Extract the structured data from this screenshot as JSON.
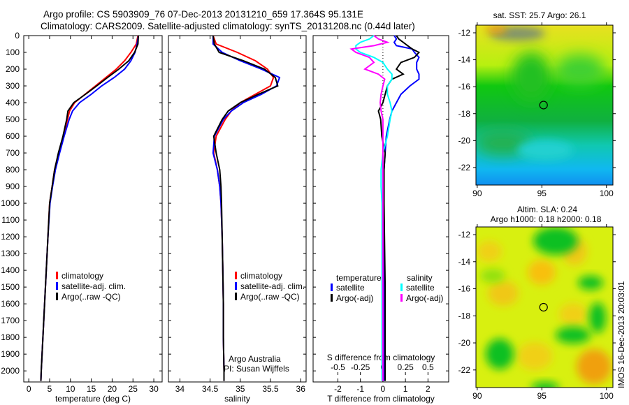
{
  "title_line1": "Argo profile: CS 5903909_76 07-Dec-2013 20131210_659 17.364S 95.131E",
  "title_line2": "Climatology: CARS2009. Satellite-adjusted climatology: synTS_20131208.nc (0.44d later)",
  "depth_ticks": [
    "0",
    "100",
    "200",
    "300",
    "400",
    "500",
    "600",
    "700",
    "800",
    "900",
    "1000",
    "1100",
    "1200",
    "1300",
    "1400",
    "1500",
    "1600",
    "1700",
    "1800",
    "1900",
    "2000"
  ],
  "credit": {
    "line1": "Argo Australia",
    "line2": "PI: Susan Wijffels"
  },
  "imos_stamp": "IMOS 16-Dec-2013 20:03:01",
  "colors": {
    "clim": "#ff0000",
    "sat": "#0000ff",
    "argo": "#000000",
    "s_sat": "#00ffff",
    "s_argo": "#ff00ff"
  },
  "chart_data": [
    {
      "type": "line",
      "name": "temperature",
      "xlabel": "temperature (deg C)",
      "ylabel": "depth",
      "xlim": [
        -1.2,
        32
      ],
      "ylim": [
        0,
        2066
      ],
      "xticks": [
        0,
        5,
        10,
        15,
        20,
        25,
        30
      ],
      "xtick_labels": [
        "0",
        "5",
        "10",
        "15",
        "20",
        "25",
        "30"
      ],
      "legend": [
        "climatology",
        "satellite-adj. clim.",
        "Argo(..raw -QC)"
      ],
      "legend_placement": "lower-middle",
      "depth": [
        0,
        50,
        100,
        150,
        200,
        250,
        300,
        350,
        400,
        450,
        500,
        600,
        700,
        800,
        900,
        1000,
        1200,
        1400,
        1600,
        1800,
        2000,
        2060
      ],
      "series": [
        {
          "name": "climatology",
          "color": "#ff0000",
          "values": [
            26.2,
            25.8,
            24.5,
            23,
            21,
            18.5,
            16,
            13.5,
            11,
            9.8,
            9.3,
            8.3,
            7.2,
            6.2,
            5.6,
            5.0,
            4.6,
            4.2,
            3.8,
            3.4,
            3.0,
            2.9
          ]
        },
        {
          "name": "satellite-adj. clim.",
          "color": "#0000ff",
          "values": [
            26.3,
            26,
            25.5,
            24.5,
            23,
            20.5,
            17.5,
            15,
            12.2,
            10.5,
            9.7,
            8.5,
            7.4,
            6.4,
            5.7,
            5.1,
            4.6,
            4.2,
            3.8,
            3.4,
            3.0,
            2.9
          ]
        },
        {
          "name": "Argo(..raw -QC)",
          "color": "#000000",
          "values": [
            26.3,
            26.2,
            25.4,
            24,
            21.6,
            18.9,
            16.3,
            13.6,
            10.8,
            9.4,
            9.1,
            8.2,
            7.1,
            6.2,
            5.6,
            5.0,
            4.6,
            4.2,
            3.8,
            3.4,
            3.0,
            2.9
          ]
        }
      ]
    },
    {
      "type": "line",
      "name": "salinity",
      "xlabel": "salinity",
      "xlim": [
        33.81,
        36.09
      ],
      "ylim": [
        0,
        2066
      ],
      "xticks": [
        34,
        34.5,
        35,
        35.5,
        36
      ],
      "xtick_labels": [
        "34",
        "34.5",
        "35",
        "35.5",
        "36"
      ],
      "legend": [
        "climatology",
        "satellite-adj. clim.",
        "Argo(..raw -QC)"
      ],
      "legend_placement": "lower-right",
      "depth": [
        0,
        50,
        100,
        150,
        200,
        250,
        300,
        350,
        400,
        450,
        500,
        600,
        700,
        800,
        900,
        1000,
        1200,
        1400,
        1600,
        1800,
        2000,
        2060
      ],
      "series": [
        {
          "name": "climatology",
          "color": "#ff0000",
          "values": [
            34.55,
            34.6,
            34.95,
            35.25,
            35.45,
            35.55,
            35.5,
            35.25,
            35.0,
            34.85,
            34.75,
            34.6,
            34.56,
            34.62,
            34.66,
            34.68,
            34.7,
            34.71,
            34.72,
            34.72,
            34.73,
            34.73
          ]
        },
        {
          "name": "satellite-adj. clim.",
          "color": "#0000ff",
          "values": [
            34.55,
            34.55,
            34.7,
            35.0,
            35.35,
            35.65,
            35.6,
            35.35,
            35.05,
            34.85,
            34.72,
            34.57,
            34.55,
            34.62,
            34.66,
            34.68,
            34.7,
            34.71,
            34.72,
            34.72,
            34.73,
            34.73
          ]
        },
        {
          "name": "Argo(..raw -QC)",
          "color": "#000000",
          "values": [
            34.55,
            34.57,
            34.65,
            35.05,
            35.4,
            35.58,
            35.62,
            35.3,
            35.0,
            34.8,
            34.7,
            34.56,
            34.6,
            34.66,
            34.68,
            34.69,
            34.7,
            34.71,
            34.72,
            34.72,
            34.73,
            34.73
          ]
        }
      ]
    },
    {
      "type": "line",
      "name": "difference-from-climatology",
      "xlabel": "T difference from climatology",
      "x2label": "S difference from climatology",
      "xlim": [
        -3.1,
        2.92
      ],
      "ylim": [
        0,
        2066
      ],
      "xticks": [
        -2,
        -1,
        0,
        1,
        2
      ],
      "xtick_labels": [
        "-2",
        "-1",
        "0",
        "1",
        "2"
      ],
      "x2ticks": [
        -0.5,
        -0.25,
        0,
        0.25,
        0.5
      ],
      "x2tick_labels": [
        "-0.5",
        "-0.25",
        "0",
        "0.25",
        "0.5"
      ],
      "legend_headers": [
        "temperature",
        "salinity"
      ],
      "legend": [
        "satellite",
        "Argo(-adj)",
        "satellite",
        "Argo(-adj)"
      ],
      "depth": [
        0,
        20,
        40,
        60,
        80,
        100,
        130,
        160,
        200,
        230,
        260,
        300,
        350,
        400,
        450,
        500,
        600,
        700,
        800,
        900,
        1000,
        1500,
        2000,
        2060
      ],
      "series": [
        {
          "name": "T satellite",
          "axis": "T",
          "color": "#0000ff",
          "values": [
            0.5,
            0.6,
            0.5,
            0.6,
            1.3,
            1.4,
            1.6,
            1.5,
            1.5,
            1.6,
            1.6,
            1.2,
            0.8,
            0.6,
            0.4,
            0.3,
            0.15,
            0.1,
            0.05,
            0.05,
            0.05,
            0.05,
            0.05,
            0.05
          ]
        },
        {
          "name": "T Argo(-adj)",
          "axis": "T",
          "color": "#000000",
          "values": [
            0.6,
            0.7,
            0.9,
            1.1,
            1.3,
            1.6,
            1.4,
            0.8,
            0.6,
            0.9,
            0.4,
            0.2,
            0.1,
            0.0,
            -0.2,
            -0.1,
            -0.05,
            0.1,
            0.05,
            0.05,
            0.05,
            0.1,
            0.1,
            0.1
          ]
        },
        {
          "name": "S satellite",
          "axis": "S",
          "color": "#00ffff",
          "values": [
            -0.1,
            -0.15,
            -0.25,
            -0.3,
            -0.3,
            -0.25,
            -0.1,
            0.0,
            0.05,
            0.1,
            0.1,
            0.05,
            0.05,
            0.08,
            0.1,
            0.08,
            0.05,
            0.0,
            -0.02,
            -0.02,
            -0.01,
            -0.01,
            -0.01,
            -0.01
          ]
        },
        {
          "name": "S Argo(-adj)",
          "axis": "S",
          "color": "#ff00ff",
          "values": [
            -0.1,
            -0.05,
            0.05,
            -0.1,
            -0.35,
            -0.3,
            -0.15,
            -0.1,
            -0.2,
            -0.05,
            0.02,
            0.0,
            -0.02,
            -0.03,
            -0.02,
            0.0,
            0.0,
            0.0,
            0.0,
            0.0,
            0.0,
            0.0,
            0.0,
            0.0
          ]
        }
      ]
    },
    {
      "type": "heatmap",
      "name": "sst-map",
      "title": "sat. SST: 25.7 Argo: 26.1",
      "xlim": [
        89.9,
        100.5
      ],
      "ylim": [
        -23.3,
        -11.43
      ],
      "xticks": [
        90,
        95,
        100
      ],
      "xtick_labels": [
        "90",
        "95",
        "100"
      ],
      "yticks": [
        -12,
        -14,
        -16,
        -18,
        -20,
        -22
      ],
      "ytick_labels": [
        "-12",
        "-14",
        "-16",
        "-18",
        "-20",
        "-22"
      ],
      "argo_position": [
        95.131,
        -17.364
      ]
    },
    {
      "type": "heatmap",
      "name": "sla-map",
      "title_line1": "Altim. SLA: 0.24",
      "title_line2": "Argo h1000: 0.18 h2000: 0.18",
      "xlim": [
        89.9,
        100.5
      ],
      "ylim": [
        -23.3,
        -11.43
      ],
      "xticks": [
        90,
        95,
        100
      ],
      "xtick_labels": [
        "90",
        "95",
        "100"
      ],
      "yticks": [
        -12,
        -14,
        -16,
        -18,
        -20,
        -22
      ],
      "ytick_labels": [
        "-12",
        "-14",
        "-16",
        "-18",
        "-20",
        "-22"
      ],
      "argo_position": [
        95.131,
        -17.364
      ]
    }
  ]
}
